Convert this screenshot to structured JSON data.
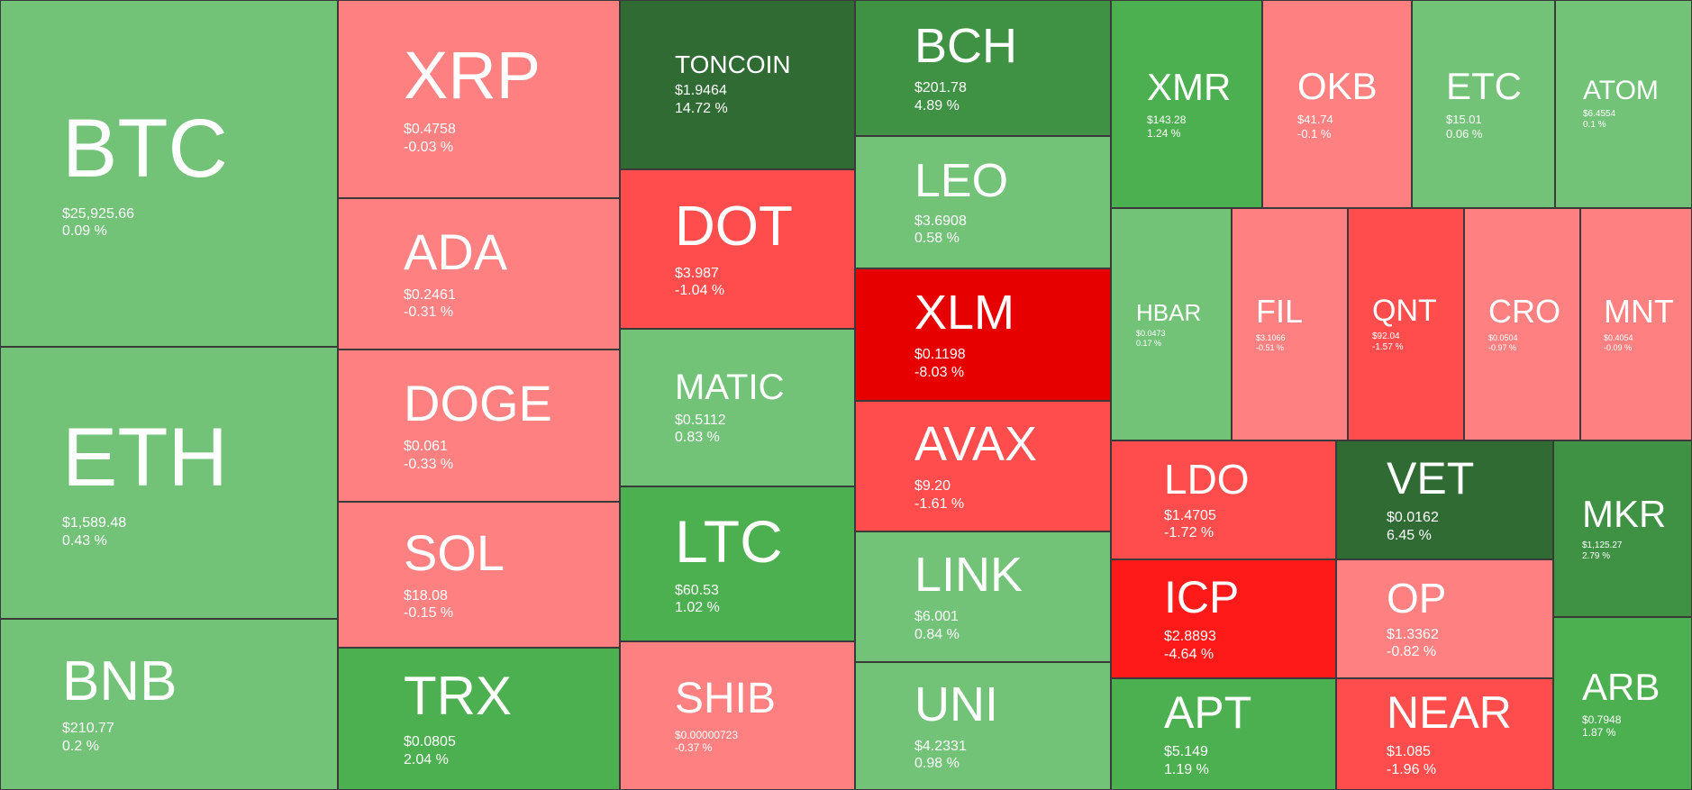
{
  "chart_data": {
    "type": "treemap",
    "colors": {
      "strong_gain": "#2f6b33",
      "gain": "#3f9143",
      "mid_gain": "#4caf50",
      "small_gain": "#72c278",
      "small_loss": "#ff8080",
      "loss": "#ff4d4d",
      "strong_loss": "#ff1a1a",
      "severe_loss": "#e60000"
    },
    "items": [
      {
        "symbol": "BTC",
        "price": "$25,925.66",
        "change": "0.09 %",
        "change_pct": 0.09,
        "color": "#72c278"
      },
      {
        "symbol": "ETH",
        "price": "$1,589.48",
        "change": "0.43 %",
        "change_pct": 0.43,
        "color": "#72c278"
      },
      {
        "symbol": "BNB",
        "price": "$210.77",
        "change": "0.2 %",
        "change_pct": 0.2,
        "color": "#72c278"
      },
      {
        "symbol": "XRP",
        "price": "$0.4758",
        "change": "-0.03 %",
        "change_pct": -0.03,
        "color": "#ff8080"
      },
      {
        "symbol": "ADA",
        "price": "$0.2461",
        "change": "-0.31 %",
        "change_pct": -0.31,
        "color": "#ff8080"
      },
      {
        "symbol": "DOGE",
        "price": "$0.061",
        "change": "-0.33 %",
        "change_pct": -0.33,
        "color": "#ff8080"
      },
      {
        "symbol": "SOL",
        "price": "$18.08",
        "change": "-0.15 %",
        "change_pct": -0.15,
        "color": "#ff8080"
      },
      {
        "symbol": "TRX",
        "price": "$0.0805",
        "change": "2.04 %",
        "change_pct": 2.04,
        "color": "#4caf50"
      },
      {
        "symbol": "TONCOIN",
        "price": "$1.9464",
        "change": "14.72 %",
        "change_pct": 14.72,
        "color": "#2f6b33"
      },
      {
        "symbol": "DOT",
        "price": "$3.987",
        "change": "-1.04 %",
        "change_pct": -1.04,
        "color": "#ff4d4d"
      },
      {
        "symbol": "MATIC",
        "price": "$0.5112",
        "change": "0.83 %",
        "change_pct": 0.83,
        "color": "#72c278"
      },
      {
        "symbol": "LTC",
        "price": "$60.53",
        "change": "1.02 %",
        "change_pct": 1.02,
        "color": "#4caf50"
      },
      {
        "symbol": "SHIB",
        "price": "$0.00000723",
        "change": "-0.37 %",
        "change_pct": -0.37,
        "color": "#ff8080"
      },
      {
        "symbol": "BCH",
        "price": "$201.78",
        "change": "4.89 %",
        "change_pct": 4.89,
        "color": "#3f9143"
      },
      {
        "symbol": "LEO",
        "price": "$3.6908",
        "change": "0.58 %",
        "change_pct": 0.58,
        "color": "#72c278"
      },
      {
        "symbol": "XLM",
        "price": "$0.1198",
        "change": "-8.03 %",
        "change_pct": -8.03,
        "color": "#e60000"
      },
      {
        "symbol": "AVAX",
        "price": "$9.20",
        "change": "-1.61 %",
        "change_pct": -1.61,
        "color": "#ff4d4d"
      },
      {
        "symbol": "LINK",
        "price": "$6.001",
        "change": "0.84 %",
        "change_pct": 0.84,
        "color": "#72c278"
      },
      {
        "symbol": "UNI",
        "price": "$4.2331",
        "change": "0.98 %",
        "change_pct": 0.98,
        "color": "#72c278"
      },
      {
        "symbol": "XMR",
        "price": "$143.28",
        "change": "1.24 %",
        "change_pct": 1.24,
        "color": "#4caf50"
      },
      {
        "symbol": "OKB",
        "price": "$41.74",
        "change": "-0.1 %",
        "change_pct": -0.1,
        "color": "#ff8080"
      },
      {
        "symbol": "ETC",
        "price": "$15.01",
        "change": "0.06 %",
        "change_pct": 0.06,
        "color": "#72c278"
      },
      {
        "symbol": "ATOM",
        "price": "$6.4554",
        "change": "0.1 %",
        "change_pct": 0.1,
        "color": "#72c278"
      },
      {
        "symbol": "HBAR",
        "price": "$0.0473",
        "change": "0.17 %",
        "change_pct": 0.17,
        "color": "#72c278"
      },
      {
        "symbol": "FIL",
        "price": "$3.1066",
        "change": "-0.51 %",
        "change_pct": -0.51,
        "color": "#ff8080"
      },
      {
        "symbol": "QNT",
        "price": "$92.04",
        "change": "-1.57 %",
        "change_pct": -1.57,
        "color": "#ff4d4d"
      },
      {
        "symbol": "CRO",
        "price": "$0.0504",
        "change": "-0.97 %",
        "change_pct": -0.97,
        "color": "#ff8080"
      },
      {
        "symbol": "MNT",
        "price": "$0.4054",
        "change": "-0.09 %",
        "change_pct": -0.09,
        "color": "#ff8080"
      },
      {
        "symbol": "LDO",
        "price": "$1.4705",
        "change": "-1.72 %",
        "change_pct": -1.72,
        "color": "#ff4d4d"
      },
      {
        "symbol": "VET",
        "price": "$0.0162",
        "change": "6.45 %",
        "change_pct": 6.45,
        "color": "#2f6b33"
      },
      {
        "symbol": "MKR",
        "price": "$1,125.27",
        "change": "2.79 %",
        "change_pct": 2.79,
        "color": "#3f9143"
      },
      {
        "symbol": "ICP",
        "price": "$2.8893",
        "change": "-4.64 %",
        "change_pct": -4.64,
        "color": "#ff1a1a"
      },
      {
        "symbol": "OP",
        "price": "$1.3362",
        "change": "-0.82 %",
        "change_pct": -0.82,
        "color": "#ff8080"
      },
      {
        "symbol": "ARB",
        "price": "$0.7948",
        "change": "1.87 %",
        "change_pct": 1.87,
        "color": "#4caf50"
      },
      {
        "symbol": "APT",
        "price": "$5.149",
        "change": "1.19 %",
        "change_pct": 1.19,
        "color": "#4caf50"
      },
      {
        "symbol": "NEAR",
        "price": "$1.085",
        "change": "-1.96 %",
        "change_pct": -1.96,
        "color": "#ff4d4d"
      }
    ]
  }
}
